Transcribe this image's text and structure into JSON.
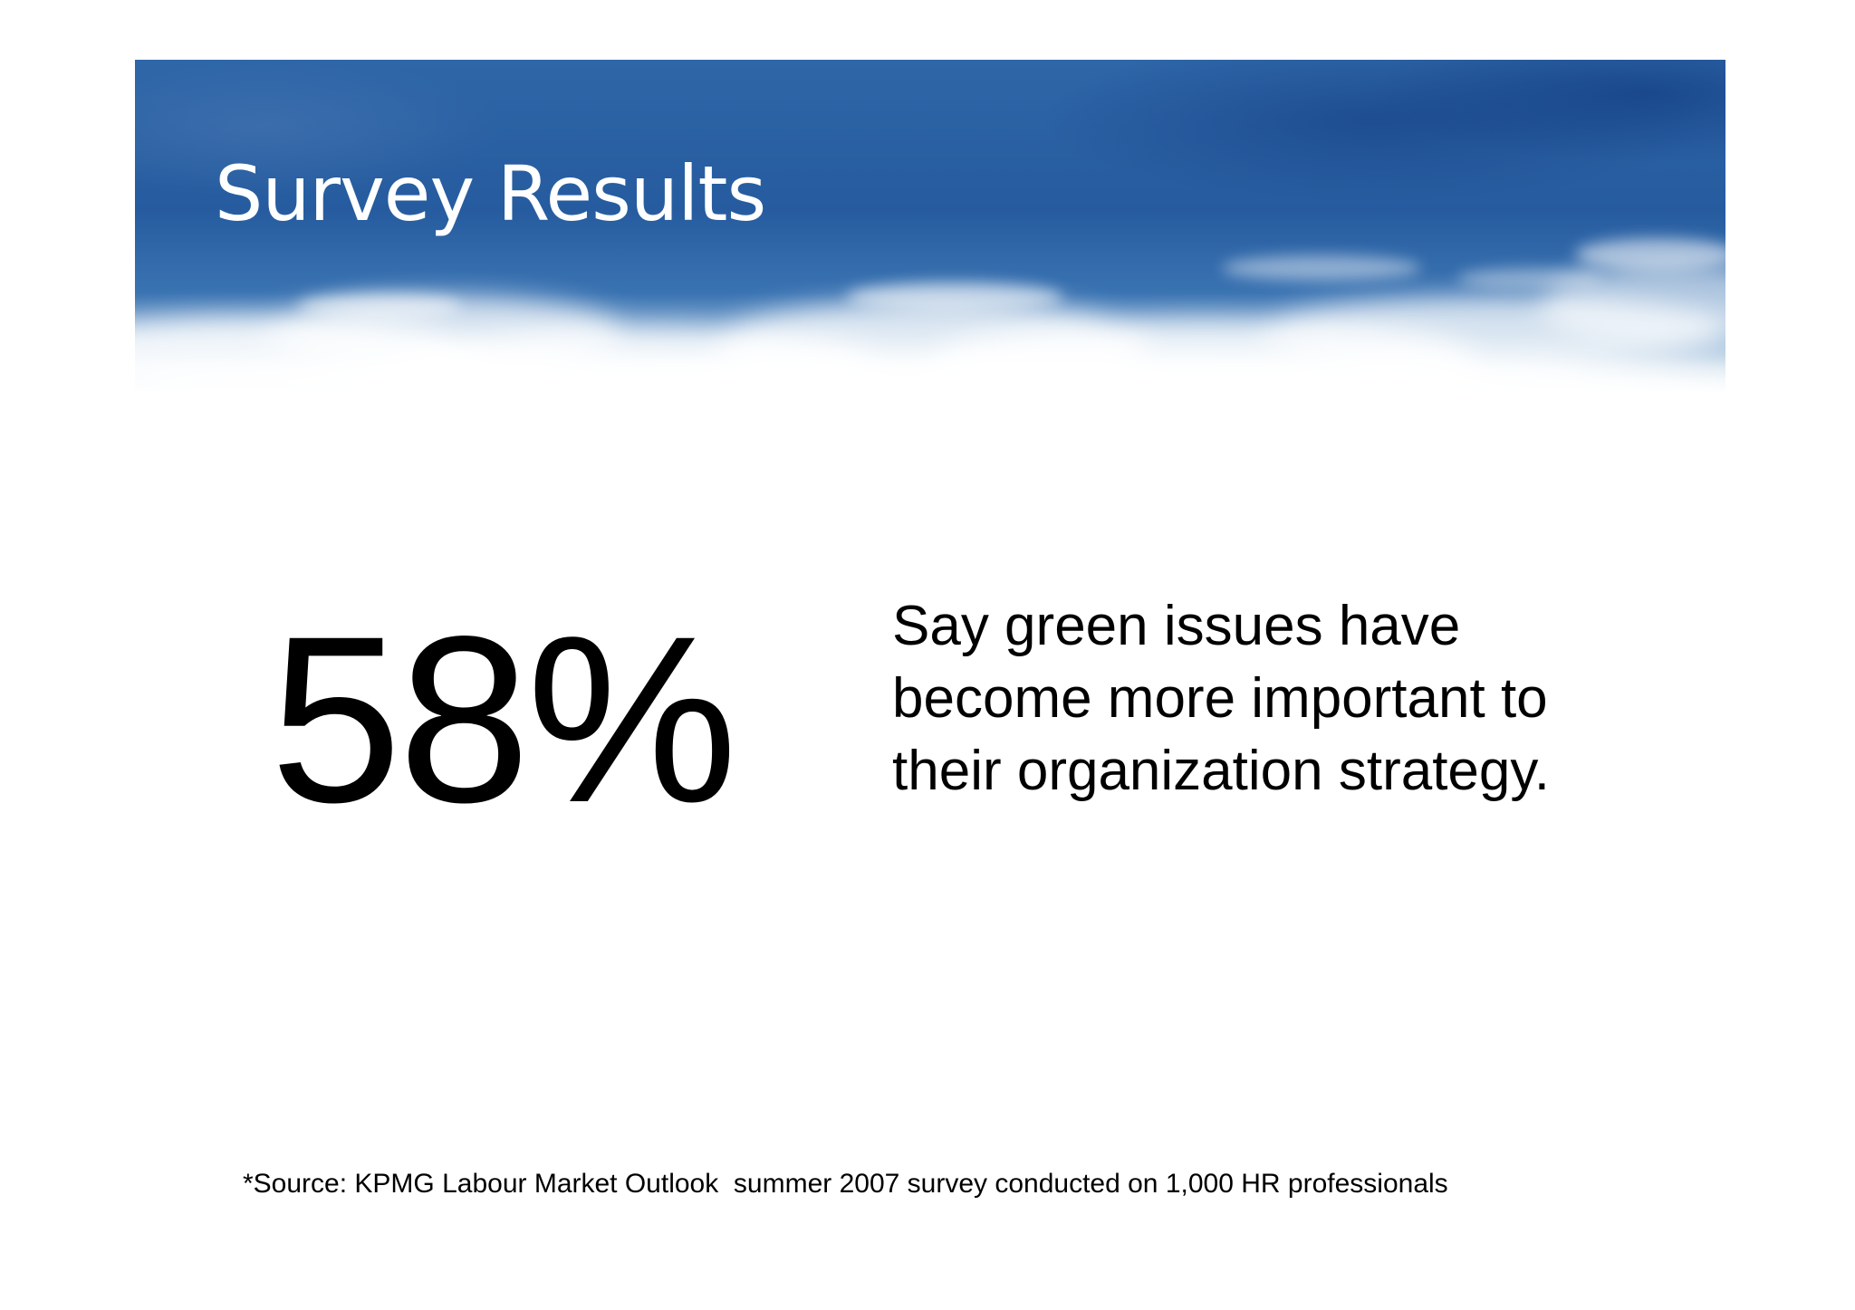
{
  "slide": {
    "title": "Survey Results",
    "stat_value": "58%",
    "description": "Say green issues have become more important to their organization strategy.",
    "source_note": "*Source: KPMG Labour Market Outlook  summer 2007 survey conducted on 1,000 HR professionals"
  },
  "colors": {
    "banner_sky": "#2e66a8",
    "title_text": "#ffffff",
    "body_text": "#000000",
    "background": "#ffffff"
  }
}
